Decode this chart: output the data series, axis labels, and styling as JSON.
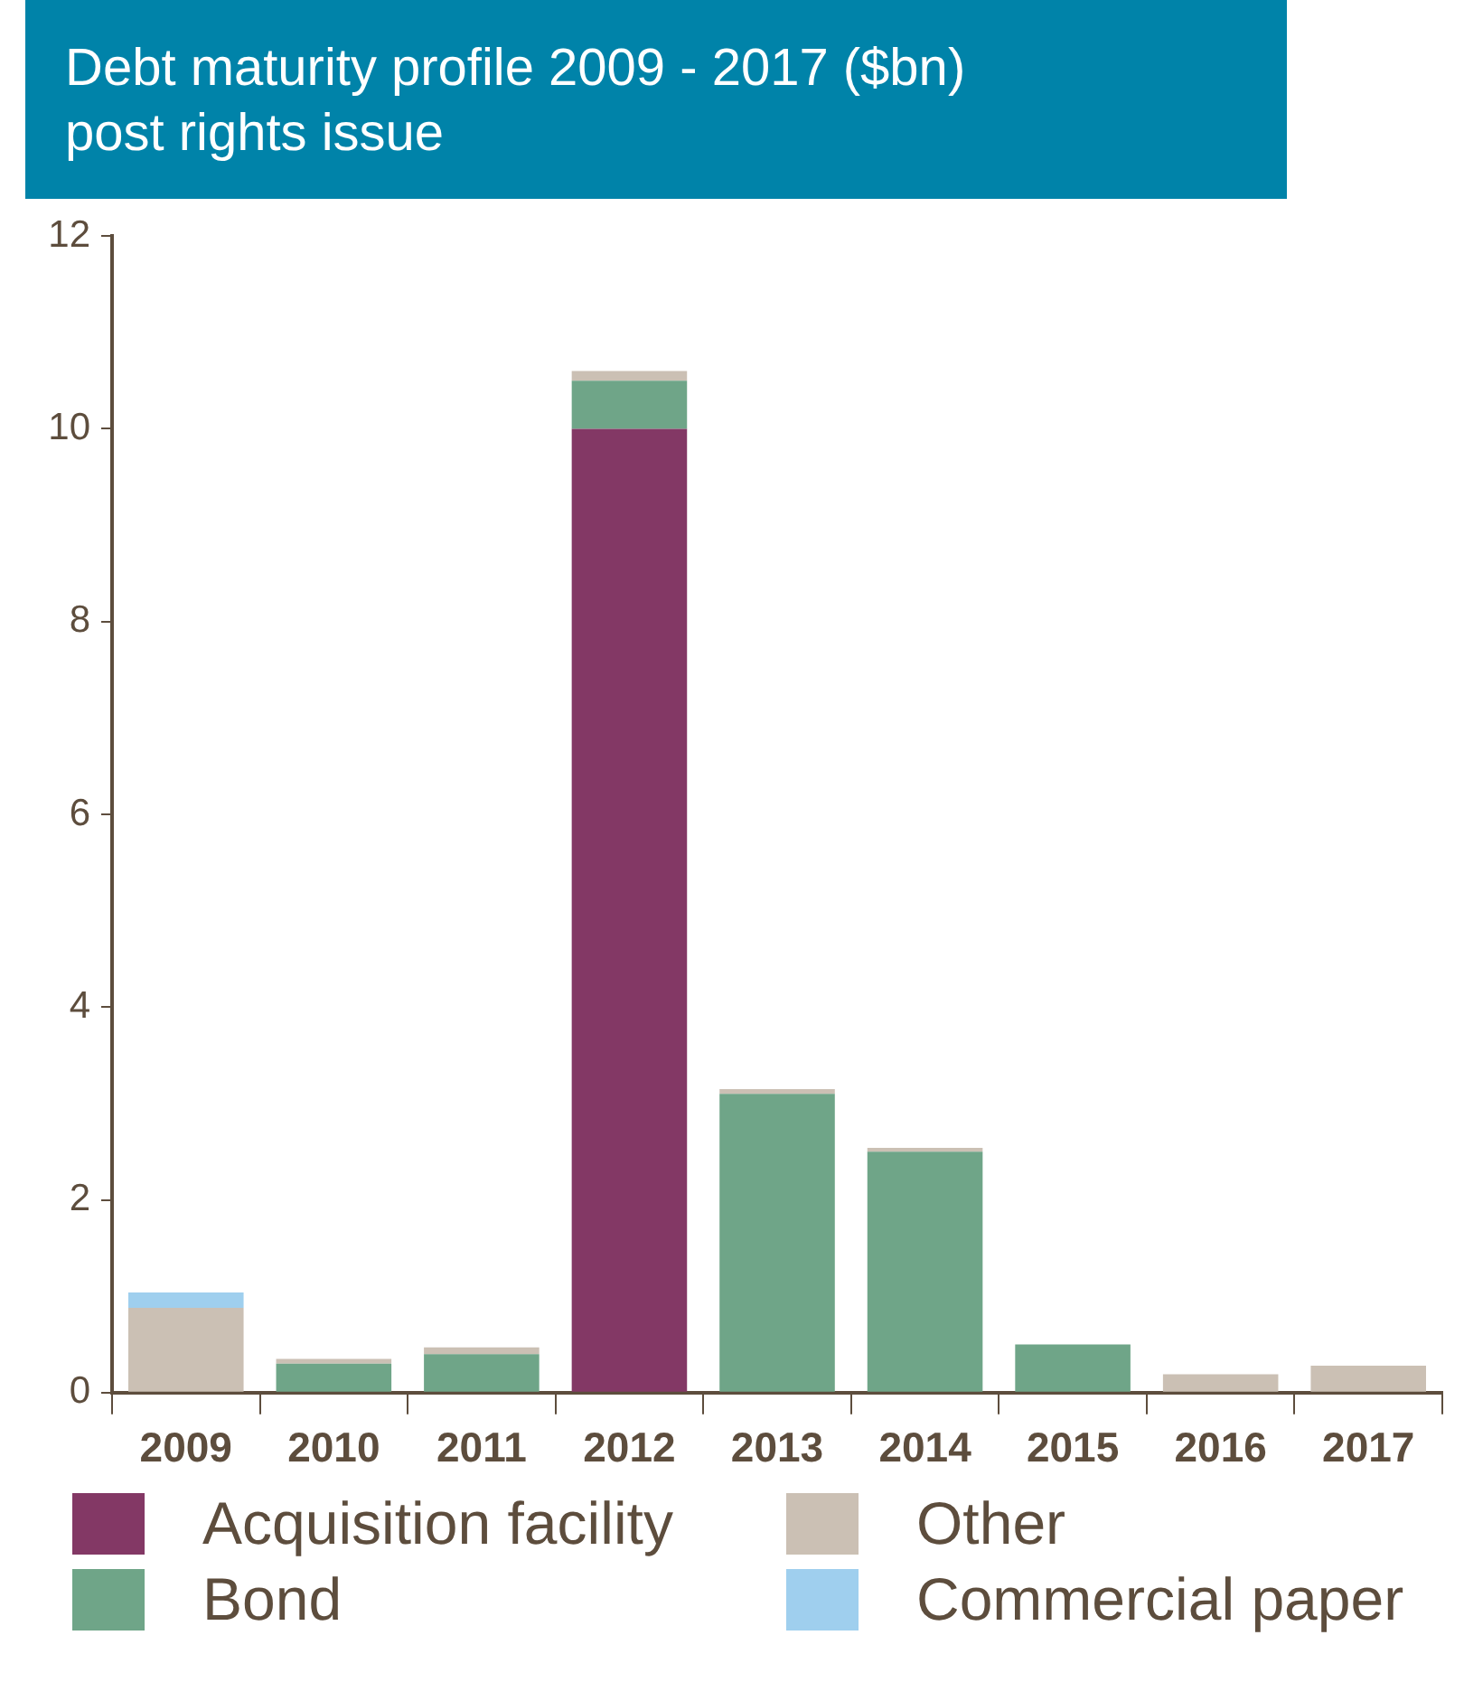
{
  "chart_data": {
    "type": "bar",
    "title": "Debt maturity profile 2009 - 2017 ($bn)\npost rights issue",
    "categories": [
      "2009",
      "2010",
      "2011",
      "2012",
      "2013",
      "2014",
      "2015",
      "2016",
      "2017"
    ],
    "stacked": true,
    "ylim": [
      0,
      12
    ],
    "yticks": [
      0,
      2,
      4,
      6,
      8,
      10,
      12
    ],
    "grid": false,
    "legend": "bottom",
    "series": [
      {
        "name": "Acquisition facility",
        "color": "#833865",
        "values": [
          null,
          null,
          null,
          10,
          null,
          null,
          null,
          null,
          null
        ]
      },
      {
        "name": "Bond",
        "color": "#6fa588",
        "values": [
          null,
          0.3,
          0.4,
          0.5,
          3.1,
          2.5,
          0.5,
          null,
          null
        ]
      },
      {
        "name": "Other",
        "color": "#cbc0b4",
        "values": [
          0.88,
          0.05,
          0.07,
          0.1,
          0.05,
          0.04,
          null,
          0.19,
          0.28
        ]
      },
      {
        "name": "Commercial paper",
        "color": "#9fcfee",
        "values": [
          0.16,
          null,
          null,
          null,
          null,
          null,
          null,
          null,
          null
        ]
      }
    ]
  }
}
